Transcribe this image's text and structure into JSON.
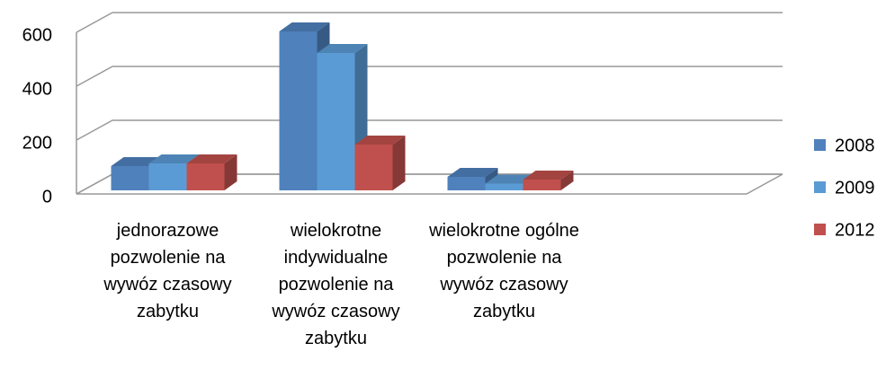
{
  "chart_data": {
    "type": "bar3d",
    "categories": [
      "jednorazowe pozwolenie na wywóz czasowy zabytku",
      "wielokrotne indywidualne pozwolenie na wywóz czasowy zabytku",
      "wielokrotne ogólne pozwolenie na wywóz czasowy zabytku"
    ],
    "series": [
      {
        "name": "2008",
        "color": "#4f81bd",
        "values": [
          90,
          590,
          50
        ]
      },
      {
        "name": "2009",
        "color": "#5b9bd5",
        "values": [
          100,
          510,
          25
        ]
      },
      {
        "name": "2012",
        "color": "#c0504d",
        "values": [
          100,
          170,
          40
        ]
      }
    ],
    "ylim": [
      0,
      600
    ],
    "yticks": [
      0,
      200,
      400,
      600
    ],
    "grid": true,
    "legend": "right"
  }
}
